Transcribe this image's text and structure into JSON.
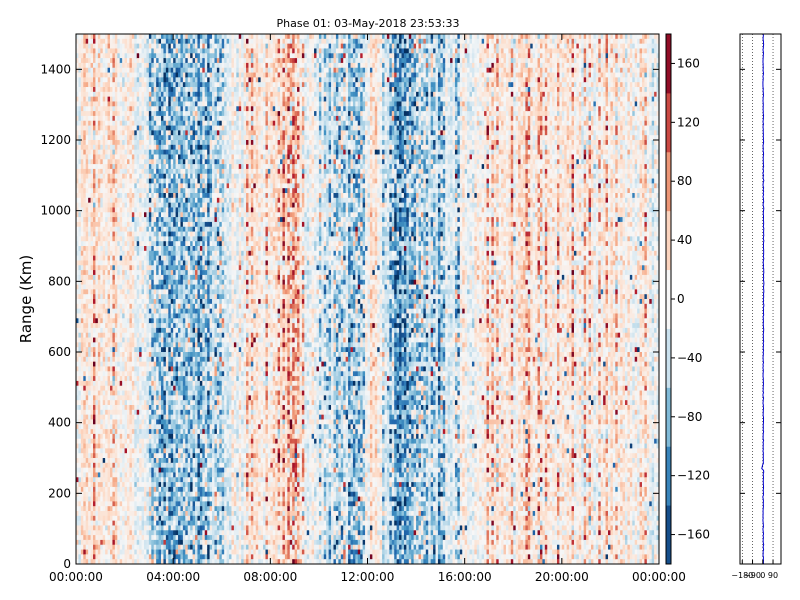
{
  "chart_data": [
    {
      "type": "heatmap",
      "title": "Phase 01: 03-May-2018 23:53:33",
      "ylabel": "Range (Km)",
      "xlabel": "",
      "x_ticks": [
        "00:00:00",
        "04:00:00",
        "08:00:00",
        "12:00:00",
        "16:00:00",
        "20:00:00",
        "00:00:00"
      ],
      "y_ticks": [
        "0",
        "200",
        "400",
        "600",
        "800",
        "1000",
        "1200",
        "1400"
      ],
      "ylim": [
        0,
        1500
      ],
      "x_range_hours": [
        0,
        24
      ],
      "colormap": "RdBu_r",
      "colorbar": {
        "range": [
          -180,
          180
        ],
        "ticks": [
          "−160",
          "−120",
          "−80",
          "−40",
          "0",
          "40",
          "80",
          "120",
          "160"
        ],
        "tick_values": [
          -160,
          -120,
          -80,
          -40,
          0,
          40,
          80,
          120,
          160
        ]
      },
      "column_mean_phase_by_hour": [
        {
          "hour": 0.0,
          "phase": 10
        },
        {
          "hour": 1.0,
          "phase": 14
        },
        {
          "hour": 2.0,
          "phase": 6
        },
        {
          "hour": 3.0,
          "phase": -15
        },
        {
          "hour": 3.5,
          "phase": -60
        },
        {
          "hour": 4.5,
          "phase": -70
        },
        {
          "hour": 5.5,
          "phase": -65
        },
        {
          "hour": 6.2,
          "phase": -15
        },
        {
          "hour": 7.0,
          "phase": 10
        },
        {
          "hour": 8.0,
          "phase": 20
        },
        {
          "hour": 8.9,
          "phase": 60
        },
        {
          "hour": 9.5,
          "phase": 15
        },
        {
          "hour": 10.5,
          "phase": -45
        },
        {
          "hour": 11.5,
          "phase": -60
        },
        {
          "hour": 12.3,
          "phase": 30
        },
        {
          "hour": 13.0,
          "phase": -50
        },
        {
          "hour": 13.3,
          "phase": -120
        },
        {
          "hour": 14.0,
          "phase": -40
        },
        {
          "hour": 15.0,
          "phase": -50
        },
        {
          "hour": 16.0,
          "phase": -15
        },
        {
          "hour": 17.0,
          "phase": 25
        },
        {
          "hour": 18.5,
          "phase": 25
        },
        {
          "hour": 20.0,
          "phase": 15
        },
        {
          "hour": 22.0,
          "phase": 8
        },
        {
          "hour": 24.0,
          "phase": 8
        }
      ]
    },
    {
      "type": "line",
      "title": "",
      "xlabel": "",
      "ylabel": "",
      "x_ticks": [
        "−180",
        "−90",
        "0",
        "90"
      ],
      "x_tick_values": [
        -180,
        -90,
        0,
        90
      ],
      "xlim": [
        -200,
        160
      ],
      "ylim": [
        0,
        1500
      ],
      "grid": "vertical dotted",
      "series": [
        {
          "color": "#0000cc",
          "points": [
            {
              "phase": 5,
              "range": 0
            },
            {
              "phase": 3,
              "range": 150
            },
            {
              "phase": 6,
              "range": 265
            },
            {
              "phase": -10,
              "range": 272
            },
            {
              "phase": 5,
              "range": 285
            },
            {
              "phase": 4,
              "range": 500
            },
            {
              "phase": 7,
              "range": 800
            },
            {
              "phase": 5,
              "range": 1100
            },
            {
              "phase": 3,
              "range": 1400
            },
            {
              "phase": 5,
              "range": 1500
            }
          ]
        }
      ]
    }
  ],
  "colors": {
    "line": "#0000cc",
    "axes": "#000000",
    "background": "#ffffff"
  }
}
